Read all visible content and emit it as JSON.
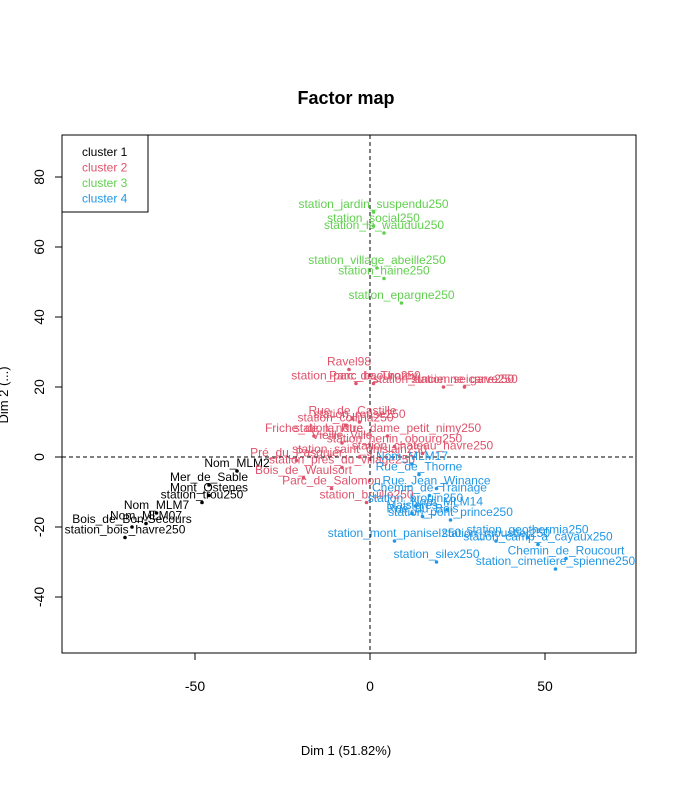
{
  "chart_data": {
    "type": "scatter",
    "title": "Factor map",
    "xlabel": "Dim 1 (51.82%)",
    "ylabel": "Dim 2 (...)",
    "xlim": [
      -88,
      76
    ],
    "ylim": [
      -56,
      92
    ],
    "x_ticks": [
      -50,
      0,
      50
    ],
    "y_ticks": [
      -40,
      -20,
      0,
      20,
      40,
      60,
      80
    ],
    "legend": {
      "position": "top-left",
      "items": [
        {
          "label": "cluster 1",
          "color": "#000000"
        },
        {
          "label": "cluster 2",
          "color": "#DF536B"
        },
        {
          "label": "cluster 3",
          "color": "#61D04F"
        },
        {
          "label": "cluster 4",
          "color": "#2297E6"
        }
      ]
    },
    "series": [
      {
        "name": "cluster 1",
        "color": "#000000",
        "points": [
          {
            "label": "Nom_MLM2",
            "x": -38,
            "y": -4
          },
          {
            "label": "Mer_de_Sable",
            "x": -46,
            "y": -8
          },
          {
            "label": "Mont_Ostenes",
            "x": -46,
            "y": -11
          },
          {
            "label": "station_trou250",
            "x": -48,
            "y": -13
          },
          {
            "label": "Nom_MLM7",
            "x": -61,
            "y": -16
          },
          {
            "label": "Nom_MLM07",
            "x": -64,
            "y": -19
          },
          {
            "label": "Bois_de_Bon-Secours",
            "x": -68,
            "y": -20
          },
          {
            "label": "station_bois_havre250",
            "x": -70,
            "y": -23
          }
        ]
      },
      {
        "name": "cluster 2",
        "color": "#DF536B",
        "points": [
          {
            "label": "Ravel98",
            "x": -6,
            "y": 25
          },
          {
            "label": "station_parc_baouro250",
            "x": -4,
            "y": 21
          },
          {
            "label": "Parc_de_Thorey",
            "x": 1,
            "y": 21
          },
          {
            "label": "station_ancienne_gare250",
            "x": 21,
            "y": 20
          },
          {
            "label": "station_seicarve250",
            "x": 27,
            "y": 20
          },
          {
            "label": "Rue_de_Castille",
            "x": -5,
            "y": 11
          },
          {
            "label": "station_ronse250",
            "x": -3,
            "y": 10
          },
          {
            "label": "station_collina250",
            "x": -7,
            "y": 9
          },
          {
            "label": "station_notre_dame_petit_nimy250",
            "x": 5,
            "y": 6
          },
          {
            "label": "Friche_de_la_Rue",
            "x": -16,
            "y": 6
          },
          {
            "label": "Vieille_Ville",
            "x": -8,
            "y": 4
          },
          {
            "label": "station_henin_obourg250",
            "x": 7,
            "y": 3
          },
          {
            "label": "station_chateau_havre250",
            "x": 15,
            "y": 1
          },
          {
            "label": "Pré_du_Pasquier",
            "x": -21,
            "y": -1
          },
          {
            "label": "station_saint_ghislain250",
            "x": -3,
            "y": 0
          },
          {
            "label": "station_pres_du_village250",
            "x": -8,
            "y": -3
          },
          {
            "label": "Bois_de_Waulsort",
            "x": -19,
            "y": -6
          },
          {
            "label": "Parc_de_Salomon",
            "x": -11,
            "y": -9
          },
          {
            "label": "station_bruille250",
            "x": -1,
            "y": -13
          }
        ]
      },
      {
        "name": "cluster 3",
        "color": "#61D04F",
        "points": [
          {
            "label": "station_jardin_suspendu250",
            "x": 1,
            "y": 70
          },
          {
            "label": "station_social250",
            "x": 1,
            "y": 66
          },
          {
            "label": "station_le_wauduu250",
            "x": 4,
            "y": 64
          },
          {
            "label": "station_village_abeille250",
            "x": 2,
            "y": 54
          },
          {
            "label": "station_haine250",
            "x": 4,
            "y": 51
          },
          {
            "label": "station_epargne250",
            "x": 9,
            "y": 44
          }
        ]
      },
      {
        "name": "cluster 4",
        "color": "#2297E6",
        "points": [
          {
            "label": "Nom_MLM17",
            "x": 12,
            "y": -2
          },
          {
            "label": "Rue_de_Thorne",
            "x": 14,
            "y": -5
          },
          {
            "label": "Rue_Jean_Winance",
            "x": 19,
            "y": -9
          },
          {
            "label": "Chemin_de_Trainage",
            "x": 17,
            "y": -11
          },
          {
            "label": "station_brouin250",
            "x": 13,
            "y": -14
          },
          {
            "label": "Nom_MLM14",
            "x": 22,
            "y": -15
          },
          {
            "label": "Rue_du_Bois",
            "x": 15,
            "y": -17
          },
          {
            "label": "Maisieres",
            "x": 12,
            "y": -16
          },
          {
            "label": "station_pont_prince250",
            "x": 23,
            "y": -18
          },
          {
            "label": "station_geothermia250",
            "x": 45,
            "y": -23
          },
          {
            "label": "station_moustier250",
            "x": 36,
            "y": -24
          },
          {
            "label": "station_camp_a_cayaux250",
            "x": 48,
            "y": -25
          },
          {
            "label": "station_mont_panisel250",
            "x": 7,
            "y": -24
          },
          {
            "label": "station_silex250",
            "x": 19,
            "y": -30
          },
          {
            "label": "Chemin_de_Roucourt",
            "x": 56,
            "y": -29
          },
          {
            "label": "station_cimetiere_spienne250",
            "x": 53,
            "y": -32
          }
        ]
      }
    ]
  }
}
